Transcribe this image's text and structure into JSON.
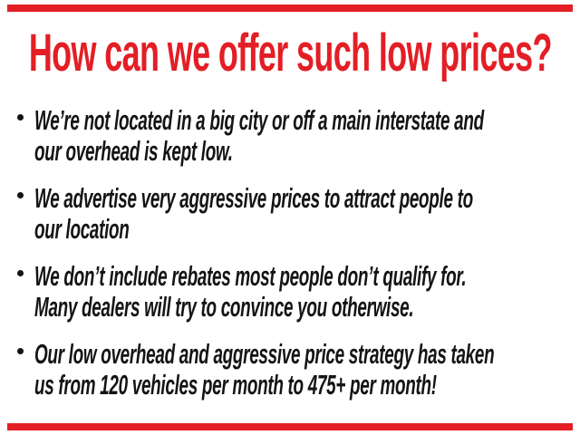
{
  "page": {
    "accent_color": "#e31e25",
    "text_color": "#141414",
    "title": "How can we offer such low prices?"
  },
  "bullets": [
    {
      "line1": "We’re not located in a big city or off a main interstate and",
      "line2": "our overhead is kept low."
    },
    {
      "line1": "We advertise very aggressive prices to attract people to",
      "line2": "our location"
    },
    {
      "line1": "We don’t include rebates most people don’t qualify for.",
      "line2": "Many dealers will try to convince you otherwise."
    },
    {
      "line1": "Our low overhead and aggressive price strategy has taken",
      "line2": "us from 120 vehicles per month to 475+ per month!"
    }
  ]
}
